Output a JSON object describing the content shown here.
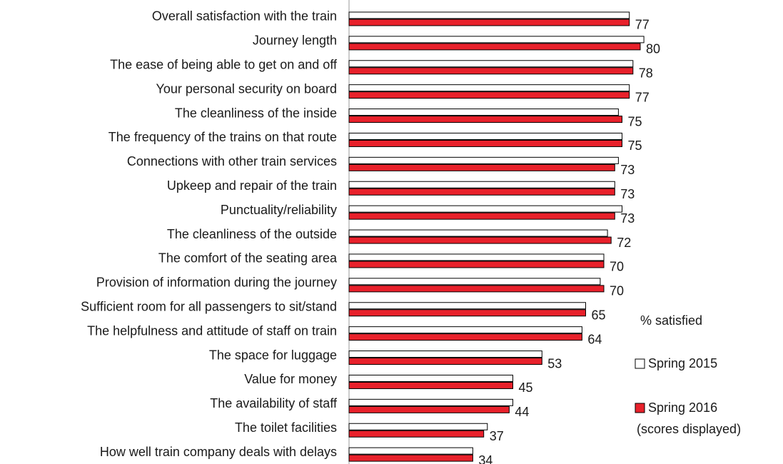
{
  "chart_data": {
    "type": "hbar",
    "categories": [
      "Overall satisfaction with the train",
      "Journey length",
      "The ease of being able to get on and off",
      "Your personal security on board",
      "The cleanliness of the inside",
      "The frequency of the trains on that route",
      "Connections with other train services",
      "Upkeep and repair of the train",
      "Punctuality/reliability",
      "The cleanliness of the outside",
      "The comfort of the seating area",
      "Provision of information during the journey",
      "Sufficient room for all passengers to sit/stand",
      "The helpfulness and attitude of staff on train",
      "The space for luggage",
      "Value for money",
      "The availability of staff",
      "The toilet facilities",
      "How well train company deals with delays"
    ],
    "series": [
      {
        "name": "Spring 2015",
        "color": "#ffffff",
        "values": [
          77,
          81,
          78,
          77,
          74,
          75,
          74,
          73,
          75,
          71,
          70,
          69,
          65,
          64,
          53,
          45,
          45,
          38,
          34
        ]
      },
      {
        "name": "Spring 2016",
        "color": "#e8212b",
        "values": [
          77,
          80,
          78,
          77,
          75,
          75,
          73,
          73,
          73,
          72,
          70,
          70,
          65,
          64,
          53,
          45,
          44,
          37,
          34
        ]
      }
    ],
    "legend_title": "% satisfied",
    "legend_note": "(scores displayed)",
    "xlim": [
      0,
      100
    ]
  }
}
